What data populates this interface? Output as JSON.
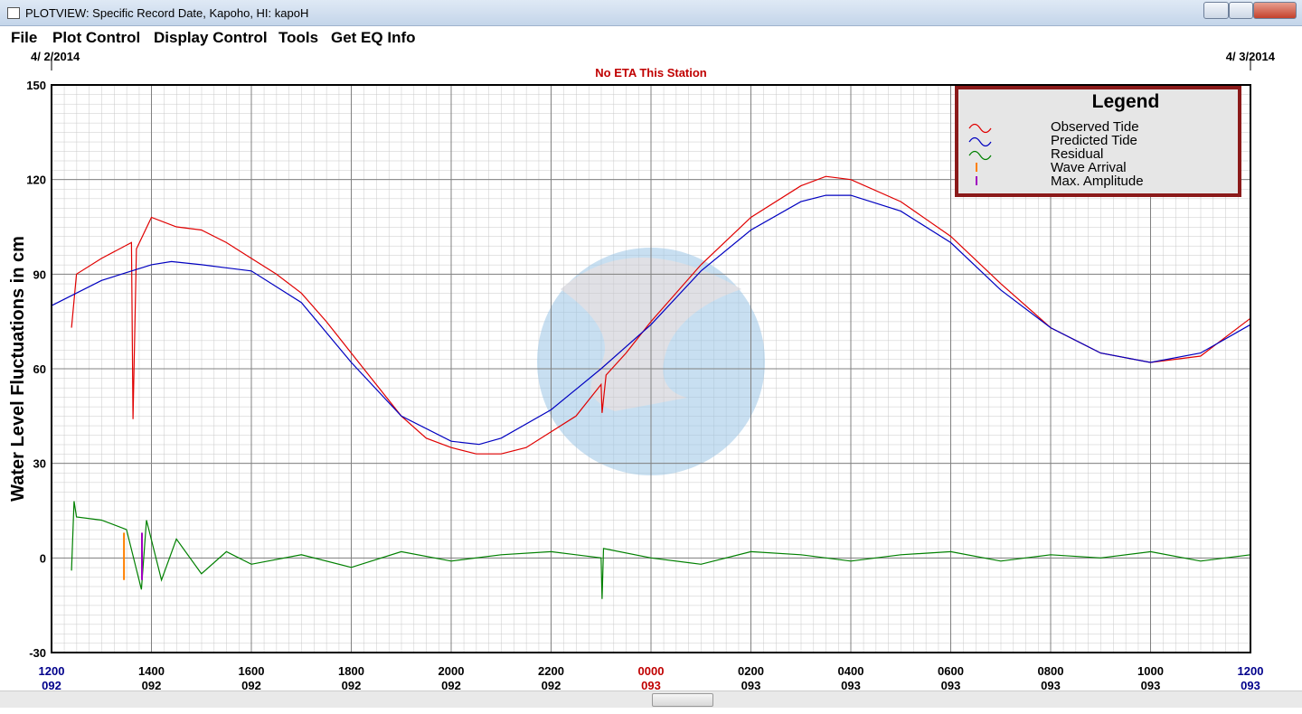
{
  "window": {
    "title": "PLOTVIEW: Specific Record Date, Kapoho, HI: kapoH"
  },
  "menu": [
    "File",
    "Plot Control",
    "Display Control",
    "Tools",
    "Get EQ Info"
  ],
  "chart_data": {
    "type": "line",
    "start_date": "4/ 2/2014",
    "end_date": "4/ 3/2014",
    "subtitle": "No ETA This Station",
    "y_label": "Water Level Fluctuations in cm",
    "legend_title": "Legend",
    "legend_position": "upper right",
    "xlim": [
      0,
      24
    ],
    "xticks": [
      {
        "value": 0,
        "label": "1200"
      },
      {
        "value": 2,
        "label": "1400"
      },
      {
        "value": 4,
        "label": "1600"
      },
      {
        "value": 6,
        "label": "1800"
      },
      {
        "value": 8,
        "label": "2000"
      },
      {
        "value": 10,
        "label": "2200"
      },
      {
        "value": 12,
        "label": "0000"
      },
      {
        "value": 14,
        "label": "0200"
      },
      {
        "value": 16,
        "label": "0400"
      },
      {
        "value": 18,
        "label": "0600"
      },
      {
        "value": 20,
        "label": "0800"
      },
      {
        "value": 22,
        "label": "1000"
      },
      {
        "value": 24,
        "label": "1200"
      }
    ],
    "xtick_days": [
      "092",
      "092",
      "092",
      "092",
      "092",
      "092",
      "093",
      "093",
      "093",
      "093",
      "093",
      "093",
      "093"
    ],
    "xtick_colors": [
      "#00008b",
      "#000000",
      "#000000",
      "#000000",
      "#000000",
      "#000000",
      "#c00000",
      "#000000",
      "#000000",
      "#000000",
      "#000000",
      "#000000",
      "#00008b"
    ],
    "ylim": [
      -30,
      150
    ],
    "yticks": [
      -30,
      0,
      30,
      60,
      90,
      120,
      150
    ],
    "grid": true,
    "series": [
      {
        "name": "Observed Tide",
        "color": "#e00000",
        "x": [
          0.4,
          0.5,
          1,
          1.6,
          1.63,
          1.7,
          2,
          2.5,
          3,
          3.5,
          4,
          4.5,
          5,
          5.5,
          6,
          6.5,
          7,
          7.5,
          8,
          8.5,
          9,
          9.5,
          10,
          10.5,
          11,
          11.02,
          11.1,
          11.5,
          12,
          13,
          14,
          15,
          15.5,
          16,
          17,
          18,
          19,
          20,
          21,
          22,
          23,
          24
        ],
        "values": [
          73,
          90,
          95,
          100,
          44,
          98,
          108,
          105,
          104,
          100,
          95,
          90,
          84,
          75,
          65,
          55,
          45,
          38,
          35,
          33,
          33,
          35,
          40,
          45,
          55,
          46,
          58,
          65,
          75,
          93,
          108,
          118,
          121,
          120,
          113,
          102,
          87,
          73,
          65,
          62,
          64,
          76
        ]
      },
      {
        "name": "Predicted Tide",
        "color": "#0000c0",
        "x": [
          0,
          1,
          2,
          2.4,
          3,
          4,
          5,
          6,
          7,
          8,
          8.56,
          9,
          10,
          11,
          12,
          13,
          14,
          15,
          15.5,
          16,
          17,
          18,
          19,
          20,
          21,
          22,
          23,
          24
        ],
        "values": [
          80,
          88,
          93,
          94,
          93,
          91,
          81,
          62,
          45,
          37,
          36,
          38,
          47,
          60,
          74,
          91,
          104,
          113,
          115,
          115,
          110,
          100,
          85,
          73,
          65,
          62,
          65,
          74
        ]
      },
      {
        "name": "Residual",
        "color": "#008000",
        "x": [
          0.4,
          0.45,
          0.5,
          1,
          1.5,
          1.8,
          1.9,
          2.2,
          2.5,
          3,
          3.5,
          4,
          5,
          6,
          7,
          8,
          9,
          10,
          11,
          11.02,
          11.05,
          12,
          13,
          14,
          15,
          16,
          17,
          18,
          19,
          20,
          21,
          22,
          23,
          24
        ],
        "values": [
          -4,
          18,
          13,
          12,
          9,
          -10,
          12,
          -7,
          6,
          -5,
          2,
          -2,
          1,
          -3,
          2,
          -1,
          1,
          2,
          0,
          -13,
          3,
          0,
          -2,
          2,
          1,
          -1,
          1,
          2,
          -1,
          1,
          0,
          2,
          -1,
          1
        ]
      }
    ],
    "markers": [
      {
        "name": "Wave Arrival",
        "color": "#ff8000",
        "x": 1.45,
        "values": [
          -7,
          8
        ]
      },
      {
        "name": "Max. Amplitude",
        "color": "#a000c0",
        "x": 1.81,
        "values": [
          -7,
          8
        ]
      }
    ]
  }
}
